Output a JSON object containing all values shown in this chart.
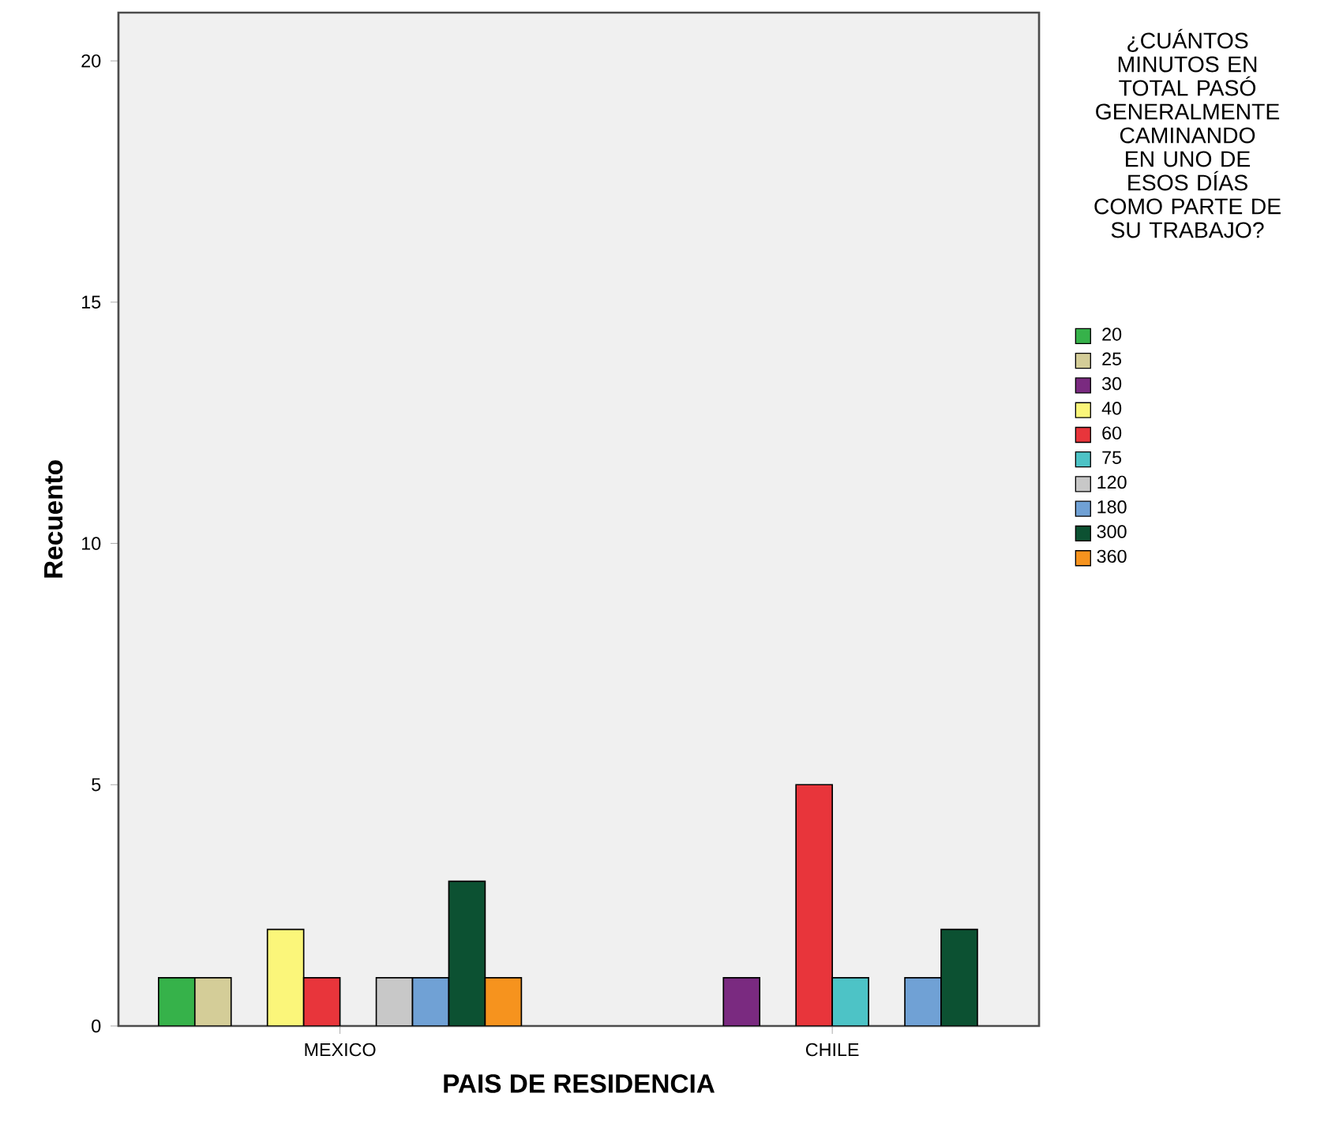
{
  "chart_data": {
    "type": "bar",
    "xlabel": "PAIS DE RESIDENCIA",
    "ylabel": "Recuento",
    "legend_title": "¿CUÁNTOS MINUTOS EN TOTAL PASÓ GENERALMENTE CAMINANDO EN UNO DE ESOS DÍAS COMO PARTE DE SU TRABAJO?",
    "categories": [
      "MEXICO",
      "CHILE"
    ],
    "series": [
      {
        "name": "20",
        "color": "#36b24a",
        "values": [
          1,
          0
        ]
      },
      {
        "name": "25",
        "color": "#d4cd98",
        "values": [
          1,
          0
        ]
      },
      {
        "name": "30",
        "color": "#7a2a80",
        "values": [
          0,
          1
        ]
      },
      {
        "name": "40",
        "color": "#fbf67a",
        "values": [
          2,
          0
        ]
      },
      {
        "name": "60",
        "color": "#e8353b",
        "values": [
          1,
          5
        ]
      },
      {
        "name": "75",
        "color": "#4dc3c6",
        "values": [
          0,
          1
        ]
      },
      {
        "name": "120",
        "color": "#c8c8c8",
        "values": [
          1,
          0
        ]
      },
      {
        "name": "180",
        "color": "#70a1d5",
        "values": [
          1,
          1
        ]
      },
      {
        "name": "300",
        "color": "#0c5132",
        "values": [
          3,
          2
        ]
      },
      {
        "name": "360",
        "color": "#f6931e",
        "values": [
          1,
          0
        ]
      }
    ],
    "ylim": [
      0,
      21
    ],
    "yticks": [
      0,
      5,
      10,
      15,
      20
    ],
    "grid": false,
    "legend": "right"
  }
}
